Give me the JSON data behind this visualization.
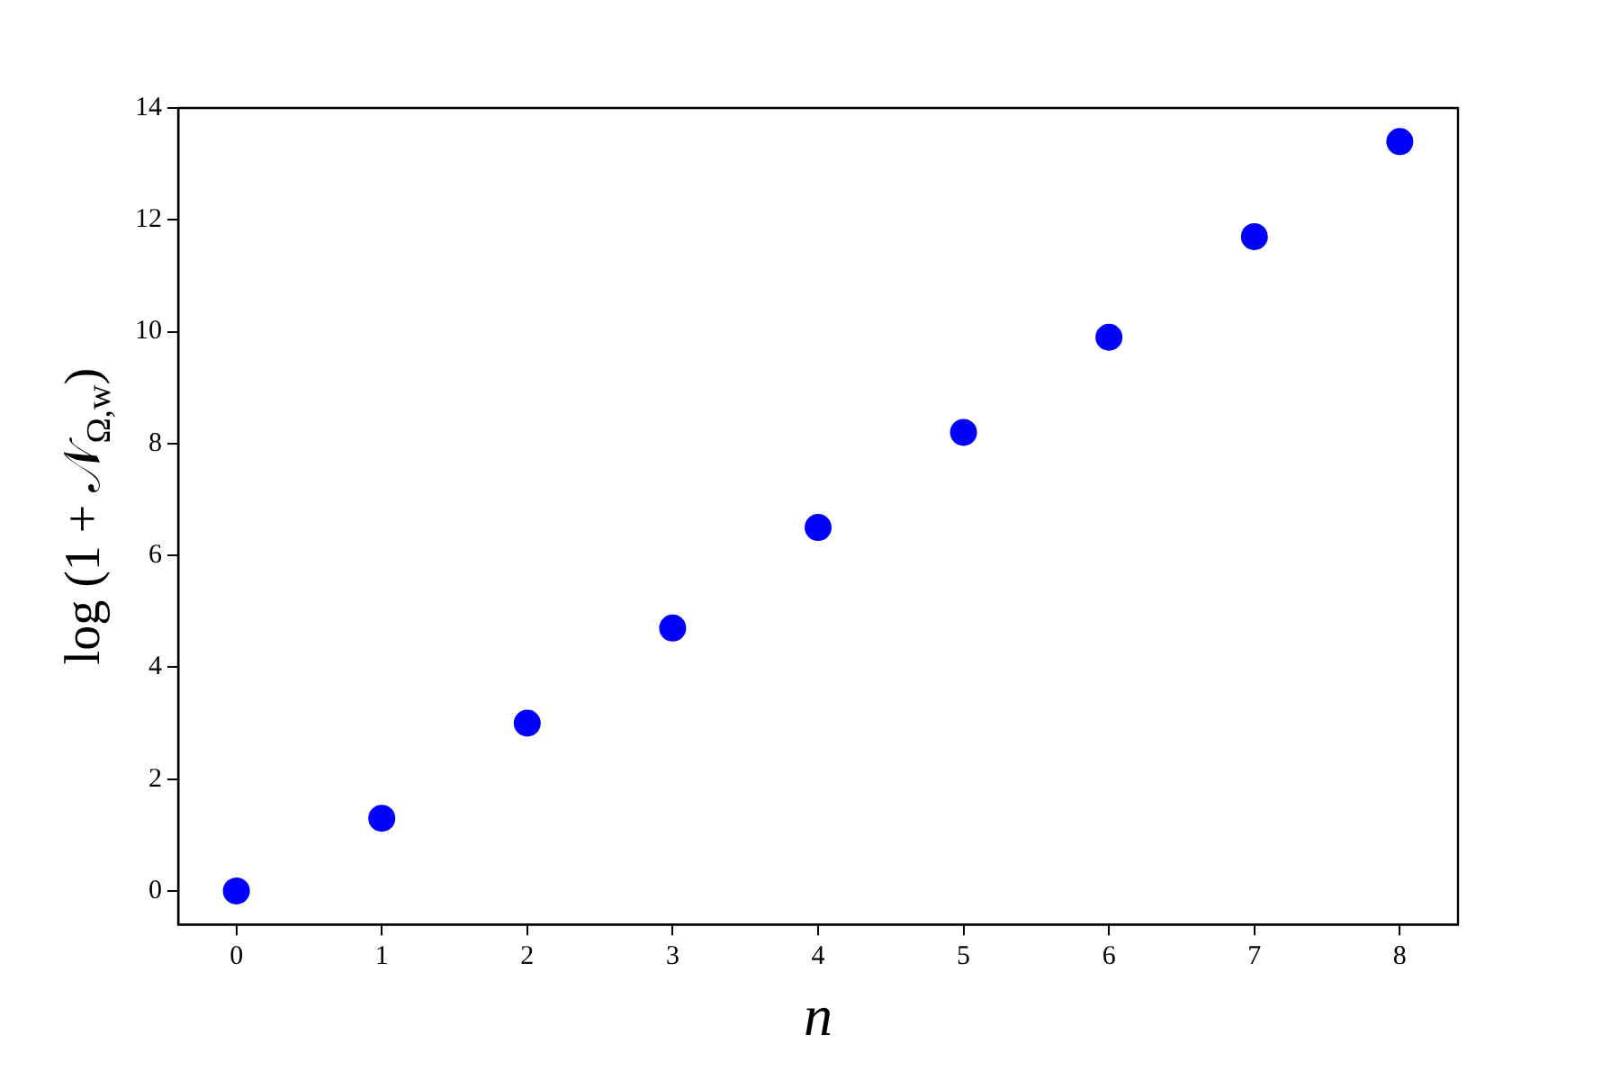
{
  "chart_data": {
    "type": "scatter",
    "xlabel": "n",
    "ylabel": "log (1 + 𝒩$_{Ω,w}$)",
    "x": [
      0,
      1,
      2,
      3,
      4,
      5,
      6,
      7,
      8
    ],
    "series": [
      {
        "color": "#0000ff",
        "values": [
          0.0,
          1.3,
          3.0,
          4.7,
          6.5,
          8.2,
          9.9,
          11.7,
          13.4
        ]
      }
    ],
    "xlim": [
      -0.4,
      8.4
    ],
    "xticks": [
      0,
      1,
      2,
      3,
      4,
      5,
      6,
      7,
      8
    ],
    "ylim": [
      -0.6,
      14
    ],
    "yticks": [
      0,
      2,
      4,
      6,
      8,
      10,
      12,
      14
    ],
    "grid": false,
    "legend": false,
    "marker": "circle"
  }
}
